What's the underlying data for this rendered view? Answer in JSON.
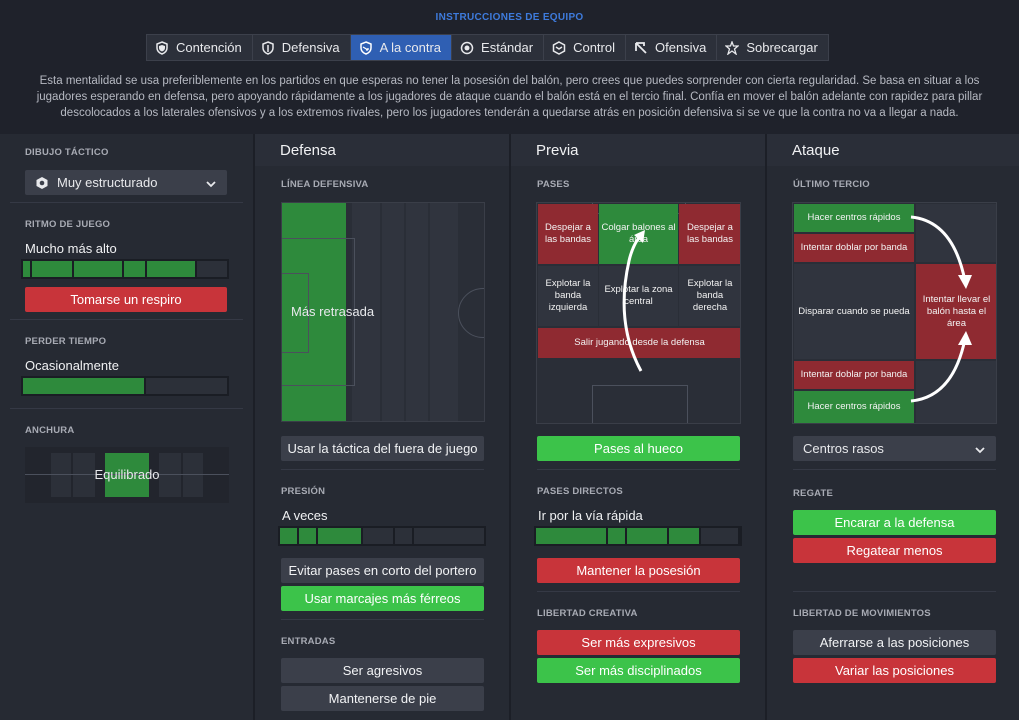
{
  "header": {
    "title": "INSTRUCCIONES DE EQUIPO",
    "tabs": [
      "Contención",
      "Defensiva",
      "A la contra",
      "Estándar",
      "Control",
      "Ofensiva",
      "Sobrecargar"
    ],
    "active_tab": "A la contra",
    "description": "Esta mentalidad se usa preferiblemente en los partidos en que esperas no tener la posesión del balón, pero crees que puedes sorprender con cierta regularidad. Se basa en situar a los jugadores esperando en defensa, pero apoyando rápidamente a los jugadores de ataque cuando el balón está en el tercio final. Confía en mover el balón adelante con rapidez para pillar descolocados a los laterales ofensivos y a los extremos rivales, pero los jugadores tenderán a quedarse atrás en posición defensiva si se ve que la contra no va a llegar a nada."
  },
  "left": {
    "formation_label": "DIBUJO TÁCTICO",
    "formation_value": "Muy estructurado",
    "tempo_label": "RITMO DE JUEGO",
    "tempo_value": "Mucho más alto",
    "tempo_level": 0.8,
    "tempo_button": "Tomarse un respiro",
    "timewasting_label": "PERDER TIEMPO",
    "timewasting_value": "Ocasionalmente",
    "timewasting_level": 0.6,
    "width_label": "ANCHURA",
    "width_value": "Equilibrado"
  },
  "defense": {
    "title": "Defensa",
    "line_label": "LÍNEA DEFENSIVA",
    "line_value": "Más retrasada",
    "offside_button": "Usar la táctica del fuera de juego",
    "press_label": "PRESIÓN",
    "press_value": "A veces",
    "press_level": 0.4,
    "gk_button": "Evitar pases en corto del portero",
    "marking_button": "Usar marcajes más férreos",
    "tackles_label": "ENTRADAS",
    "aggressive_button": "Ser agresivos",
    "stay_button": "Mantenerse de pie"
  },
  "buildup": {
    "title": "Previa",
    "passes_label": "PASES",
    "zones": {
      "clear_flanks_left": "Despejar a las bandas",
      "lob_area": "Colgar balones al área",
      "clear_flanks_right": "Despejar a las bandas",
      "exploit_left": "Explotar la banda izquierda",
      "exploit_middle": "Explotar la zona central",
      "exploit_right": "Explotar la banda derecha",
      "play_out": "Salir jugando desde la defensa"
    },
    "through_button": "Pases al hueco",
    "directness_label": "PASES DIRECTOS",
    "directness_value": "Ir por la vía rápida",
    "directness_level": 0.8,
    "possession_button": "Mantener la posesión",
    "creative_label": "LIBERTAD CREATIVA",
    "expressive_button": "Ser más expresivos",
    "disciplined_button": "Ser más disciplinados"
  },
  "attack": {
    "title": "Ataque",
    "final_third_label": "ÚLTIMO TERCIO",
    "zones": {
      "early_cross_top": "Hacer centros rápidos",
      "overlap_top": "Intentar doblar por banda",
      "shoot": "Disparar cuando se pueda",
      "work_ball": "Intentar llevar el balón hasta el área",
      "overlap_bottom": "Intentar doblar por banda",
      "early_cross_bottom": "Hacer centros rápidos"
    },
    "crossing_value": "Centros rasos",
    "dribbling_label": "REGATE",
    "run_at_button": "Encarar a la defensa",
    "dribble_less_button": "Regatear menos",
    "movement_label": "LIBERTAD DE MOVIMIENTOS",
    "hold_button": "Aferrarse a las posiciones",
    "roam_button": "Variar las posiciones"
  },
  "colors": {
    "accent": "#2f5fb3",
    "selected": "#3cc34a",
    "rejected": "#c8343a",
    "zone_green": "#2e8a3c",
    "zone_red": "#8f2a31"
  }
}
